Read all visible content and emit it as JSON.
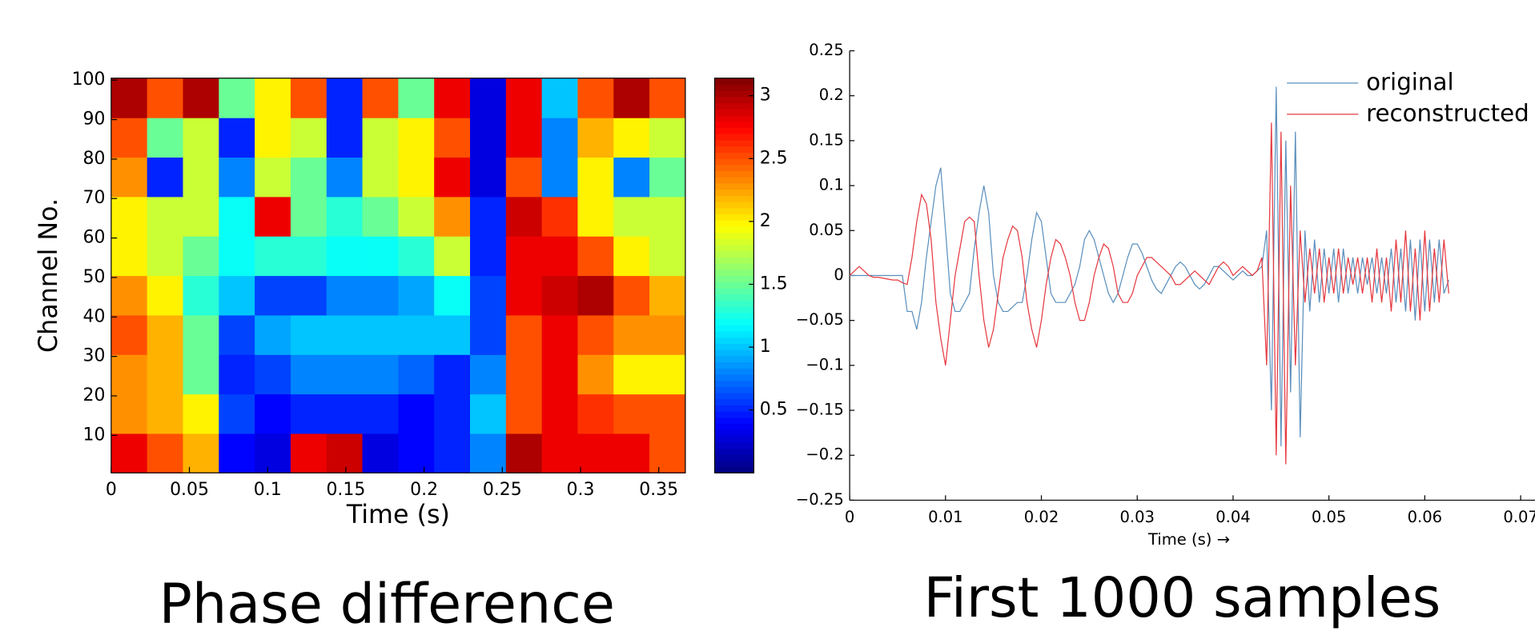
{
  "chart_data": [
    {
      "type": "heatmap",
      "title": "Phase difference",
      "xlabel": "Time (s)",
      "ylabel": "Channel No.",
      "colormap": "jet",
      "xlim": [
        0,
        0.367
      ],
      "ylim": [
        0.5,
        100.5
      ],
      "clim": [
        0,
        3.14
      ],
      "xticks": [
        0,
        0.05,
        0.1,
        0.15,
        0.2,
        0.25,
        0.3,
        0.35
      ],
      "yticks": [
        10,
        20,
        30,
        40,
        50,
        60,
        70,
        80,
        90,
        100
      ],
      "cticks": [
        0.5,
        1,
        1.5,
        2,
        2.5,
        3
      ],
      "z": [
        [
          2.8,
          2.5,
          2.2,
          0.4,
          0.3,
          2.8,
          2.9,
          0.3,
          0.4,
          0.5,
          0.8,
          3,
          2.8,
          2.8,
          2.8,
          2.5
        ],
        [
          2.3,
          2.2,
          2,
          0.6,
          0.4,
          0.5,
          0.5,
          0.5,
          0.4,
          0.5,
          1,
          2.5,
          2.8,
          2.6,
          2.5,
          2.5
        ],
        [
          2.3,
          2.2,
          1.5,
          0.5,
          0.6,
          0.8,
          0.8,
          0.8,
          0.7,
          0.5,
          0.8,
          2.5,
          2.8,
          2.3,
          2,
          2
        ],
        [
          2.5,
          2.2,
          1.5,
          0.6,
          0.9,
          1,
          1,
          1,
          1,
          1,
          0.6,
          2.5,
          2.8,
          2.5,
          2.3,
          2.3
        ],
        [
          2.3,
          2,
          1.3,
          1,
          0.6,
          0.6,
          0.8,
          0.8,
          0.9,
          1.2,
          0.6,
          2.8,
          2.9,
          3,
          2.5,
          2.2
        ],
        [
          2,
          1.8,
          1.5,
          1.2,
          1.3,
          1.3,
          1.2,
          1.2,
          1.3,
          1.8,
          0.5,
          2.8,
          2.8,
          2.5,
          2,
          1.8
        ],
        [
          2,
          1.8,
          1.8,
          1.2,
          2.8,
          1.5,
          1.3,
          1.5,
          1.8,
          2.3,
          0.5,
          2.9,
          2.6,
          2,
          1.8,
          1.8
        ],
        [
          2.3,
          0.5,
          1.8,
          0.8,
          1.8,
          1.5,
          0.8,
          1.8,
          2,
          2.8,
          0.3,
          2.5,
          0.8,
          2,
          0.8,
          1.5
        ],
        [
          2.5,
          1.5,
          1.8,
          0.5,
          2,
          1.8,
          0.5,
          1.8,
          2,
          2.5,
          0.3,
          2.8,
          0.8,
          2.2,
          2,
          1.8
        ],
        [
          3,
          2.5,
          3,
          1.5,
          2,
          2.5,
          0.5,
          2.5,
          1.5,
          2.8,
          0.3,
          2.8,
          1,
          2.5,
          3,
          2.5
        ]
      ]
    },
    {
      "type": "line",
      "title": "First 1000 samples",
      "xlabel": "Time (s) →",
      "legend": "upper right",
      "xlim": [
        0,
        0.07
      ],
      "ylim": [
        -0.25,
        0.25
      ],
      "xticks": [
        0,
        0.01,
        0.02,
        0.03,
        0.04,
        0.05,
        0.06,
        0.07
      ],
      "yticks": [
        {
          "value": -0.25,
          "label": "−0.25"
        },
        {
          "value": -0.2,
          "label": "−0.2"
        },
        {
          "value": -0.15,
          "label": "−0.15"
        },
        {
          "value": -0.1,
          "label": "−0.1"
        },
        {
          "value": -0.05,
          "label": "−0.05"
        },
        0,
        0.05,
        0.1,
        0.15,
        0.2,
        0.25
      ],
      "x": [
        0,
        0.0005,
        0.001,
        0.0015,
        0.002,
        0.0025,
        0.003,
        0.0035,
        0.004,
        0.0045,
        0.005,
        0.0055,
        0.006,
        0.0065,
        0.007,
        0.0075,
        0.008,
        0.0085,
        0.009,
        0.0095,
        0.01,
        0.0105,
        0.011,
        0.0115,
        0.012,
        0.0125,
        0.013,
        0.0135,
        0.014,
        0.0145,
        0.015,
        0.0155,
        0.016,
        0.0165,
        0.017,
        0.0175,
        0.018,
        0.0185,
        0.019,
        0.0195,
        0.02,
        0.0205,
        0.021,
        0.0215,
        0.022,
        0.0225,
        0.023,
        0.0235,
        0.024,
        0.0245,
        0.025,
        0.0255,
        0.026,
        0.0265,
        0.027,
        0.0275,
        0.028,
        0.0285,
        0.029,
        0.0295,
        0.03,
        0.0305,
        0.031,
        0.0315,
        0.032,
        0.0325,
        0.033,
        0.0335,
        0.034,
        0.0345,
        0.035,
        0.0355,
        0.036,
        0.0365,
        0.037,
        0.0375,
        0.038,
        0.0385,
        0.039,
        0.0395,
        0.04,
        0.0405,
        0.041,
        0.0415,
        0.042,
        0.0425,
        0.043,
        0.0435,
        0.044,
        0.0445,
        0.045,
        0.0455,
        0.046,
        0.0465,
        0.047,
        0.0475,
        0.048,
        0.0485,
        0.049,
        0.0495,
        0.05,
        0.0505,
        0.051,
        0.0515,
        0.052,
        0.0525,
        0.053,
        0.0535,
        0.054,
        0.0545,
        0.055,
        0.0555,
        0.056,
        0.0565,
        0.057,
        0.0575,
        0.058,
        0.0585,
        0.059,
        0.0595,
        0.06,
        0.0605,
        0.061,
        0.0615,
        0.062,
        0.0625
      ],
      "series": [
        {
          "name": "original",
          "color": "#5a8fbd",
          "values": [
            0,
            0,
            0,
            0,
            0,
            0,
            0,
            0,
            0,
            0,
            0,
            0,
            -0.04,
            -0.04,
            -0.06,
            -0.03,
            0.02,
            0.06,
            0.1,
            0.12,
            0.05,
            -0.02,
            -0.04,
            -0.04,
            -0.03,
            -0.02,
            0.03,
            0.07,
            0.1,
            0.07,
            0,
            -0.03,
            -0.04,
            -0.04,
            -0.035,
            -0.03,
            -0.03,
            0,
            0.04,
            0.07,
            0.06,
            0.02,
            -0.02,
            -0.03,
            -0.03,
            -0.03,
            -0.02,
            -0.01,
            0.01,
            0.04,
            0.05,
            0.04,
            0.02,
            0,
            -0.02,
            -0.03,
            -0.02,
            0,
            0.02,
            0.035,
            0.035,
            0.025,
            0.01,
            -0.005,
            -0.015,
            -0.02,
            -0.01,
            0,
            0.01,
            0.015,
            0.01,
            0,
            -0.01,
            -0.015,
            -0.01,
            0,
            0.01,
            0.01,
            0.005,
            0,
            -0.005,
            0,
            0.005,
            0,
            0,
            0.005,
            0.01,
            0.05,
            -0.15,
            0.21,
            -0.19,
            0.15,
            -0.13,
            0.16,
            -0.18,
            0.05,
            -0.04,
            0.04,
            -0.03,
            0.03,
            -0.02,
            0.03,
            -0.03,
            0.03,
            -0.02,
            0.02,
            -0.02,
            0.02,
            -0.01,
            0.02,
            -0.02,
            0.02,
            -0.02,
            0.03,
            -0.03,
            0.03,
            -0.04,
            0.04,
            -0.05,
            0.04,
            -0.04,
            0.04,
            -0.03,
            0.04,
            -0.02,
            -0.005
          ]
        },
        {
          "name": "reconstructed",
          "color": "#e5383f",
          "values": [
            0,
            0.005,
            0.01,
            0.005,
            0,
            -0.002,
            -0.002,
            -0.003,
            -0.004,
            -0.005,
            -0.005,
            -0.008,
            -0.01,
            0.02,
            0.06,
            0.09,
            0.08,
            0.04,
            -0.03,
            -0.07,
            -0.1,
            -0.05,
            0,
            0.03,
            0.06,
            0.065,
            0.06,
            0,
            -0.05,
            -0.08,
            -0.06,
            -0.02,
            0.02,
            0.04,
            0.055,
            0.05,
            0.02,
            -0.03,
            -0.06,
            -0.08,
            -0.05,
            -0.01,
            0.02,
            0.04,
            0.035,
            0.02,
            0,
            -0.03,
            -0.05,
            -0.05,
            -0.03,
            0,
            0.02,
            0.035,
            0.03,
            0.01,
            -0.02,
            -0.03,
            -0.03,
            -0.02,
            0,
            0.01,
            0.02,
            0.02,
            0.015,
            0.01,
            0.005,
            0,
            -0.01,
            -0.01,
            -0.005,
            0,
            0.005,
            0,
            -0.005,
            -0.01,
            0,
            0.01,
            0.015,
            0.01,
            0,
            0.005,
            0.01,
            0.005,
            0,
            0.005,
            0.02,
            -0.1,
            0.17,
            -0.2,
            0.16,
            -0.21,
            0.1,
            -0.1,
            0.05,
            -0.03,
            0.03,
            -0.02,
            0.03,
            -0.03,
            0.02,
            -0.02,
            0.03,
            -0.02,
            0.02,
            -0.01,
            0.02,
            -0.02,
            0.02,
            -0.03,
            0.03,
            -0.03,
            0.02,
            -0.04,
            0.04,
            -0.03,
            0.05,
            -0.04,
            0.03,
            -0.05,
            0.05,
            -0.04,
            0.03,
            -0.03,
            0.04,
            -0.02
          ]
        }
      ]
    }
  ]
}
